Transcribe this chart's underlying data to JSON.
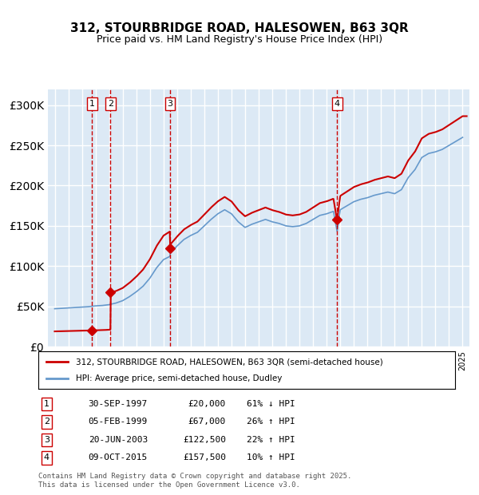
{
  "title": "312, STOURBRIDGE ROAD, HALESOWEN, B63 3QR",
  "subtitle": "Price paid vs. HM Land Registry's House Price Index (HPI)",
  "sales": [
    {
      "num": 1,
      "date_label": "30-SEP-1997",
      "date_x": 1997.75,
      "price": 20000,
      "hpi_pct": "61% ↓ HPI"
    },
    {
      "num": 2,
      "date_label": "05-FEB-1999",
      "date_x": 1999.1,
      "price": 67000,
      "hpi_pct": "26% ↑ HPI"
    },
    {
      "num": 3,
      "date_label": "20-JUN-2003",
      "date_x": 2003.47,
      "price": 122500,
      "hpi_pct": "22% ↑ HPI"
    },
    {
      "num": 4,
      "date_label": "09-OCT-2015",
      "date_x": 2015.77,
      "price": 157500,
      "hpi_pct": "10% ↑ HPI"
    }
  ],
  "legend_line1": "312, STOURBRIDGE ROAD, HALESOWEN, B63 3QR (semi-detached house)",
  "legend_line2": "HPI: Average price, semi-detached house, Dudley",
  "footer": "Contains HM Land Registry data © Crown copyright and database right 2025.\nThis data is licensed under the Open Government Licence v3.0.",
  "ylim": [
    0,
    320000
  ],
  "xlim": [
    1994.5,
    2025.5
  ],
  "bg_color": "#dce9f5",
  "plot_bg": "#dce9f5",
  "red_line_color": "#cc0000",
  "blue_line_color": "#6699cc",
  "grid_color": "#ffffff"
}
